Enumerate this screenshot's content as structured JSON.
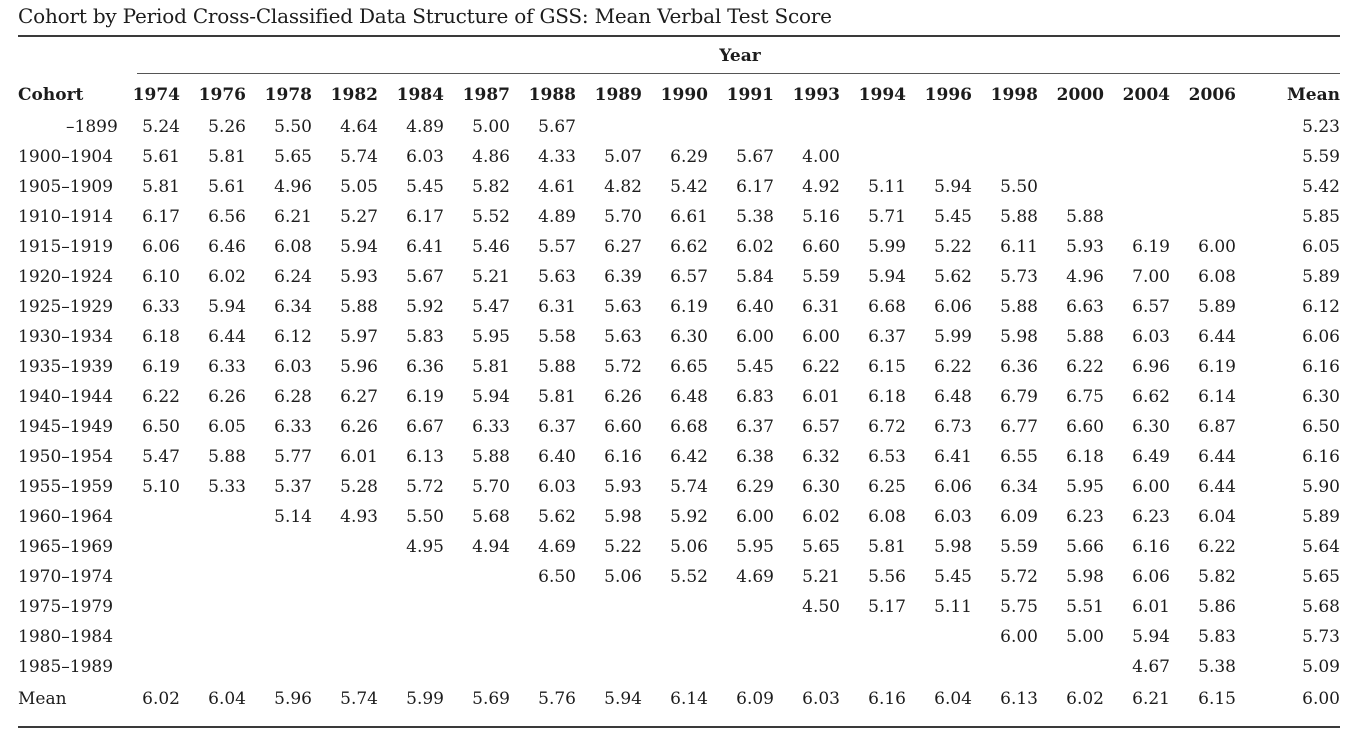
{
  "title": "Cohort by Period Cross-Classified Data Structure of GSS: Mean Verbal Test Score",
  "table": {
    "year_label": "Year",
    "cohort_header": "Cohort",
    "years": [
      "1974",
      "1976",
      "1978",
      "1982",
      "1984",
      "1987",
      "1988",
      "1989",
      "1990",
      "1991",
      "1993",
      "1994",
      "1996",
      "1998",
      "2000",
      "2004",
      "2006"
    ],
    "mean_header": "Mean",
    "rows": [
      {
        "cohort": "–1899",
        "values": [
          "5.24",
          "5.26",
          "5.50",
          "4.64",
          "4.89",
          "5.00",
          "5.67",
          "",
          "",
          "",
          "",
          "",
          "",
          "",
          "",
          "",
          ""
        ],
        "mean": "5.23"
      },
      {
        "cohort": "1900–1904",
        "values": [
          "5.61",
          "5.81",
          "5.65",
          "5.74",
          "6.03",
          "4.86",
          "4.33",
          "5.07",
          "6.29",
          "5.67",
          "4.00",
          "",
          "",
          "",
          "",
          "",
          ""
        ],
        "mean": "5.59"
      },
      {
        "cohort": "1905–1909",
        "values": [
          "5.81",
          "5.61",
          "4.96",
          "5.05",
          "5.45",
          "5.82",
          "4.61",
          "4.82",
          "5.42",
          "6.17",
          "4.92",
          "5.11",
          "5.94",
          "5.50",
          "",
          "",
          ""
        ],
        "mean": "5.42"
      },
      {
        "cohort": "1910–1914",
        "values": [
          "6.17",
          "6.56",
          "6.21",
          "5.27",
          "6.17",
          "5.52",
          "4.89",
          "5.70",
          "6.61",
          "5.38",
          "5.16",
          "5.71",
          "5.45",
          "5.88",
          "5.88",
          "",
          ""
        ],
        "mean": "5.85"
      },
      {
        "cohort": "1915–1919",
        "values": [
          "6.06",
          "6.46",
          "6.08",
          "5.94",
          "6.41",
          "5.46",
          "5.57",
          "6.27",
          "6.62",
          "6.02",
          "6.60",
          "5.99",
          "5.22",
          "6.11",
          "5.93",
          "6.19",
          "6.00"
        ],
        "mean": "6.05"
      },
      {
        "cohort": "1920–1924",
        "values": [
          "6.10",
          "6.02",
          "6.24",
          "5.93",
          "5.67",
          "5.21",
          "5.63",
          "6.39",
          "6.57",
          "5.84",
          "5.59",
          "5.94",
          "5.62",
          "5.73",
          "4.96",
          "7.00",
          "6.08"
        ],
        "mean": "5.89"
      },
      {
        "cohort": "1925–1929",
        "values": [
          "6.33",
          "5.94",
          "6.34",
          "5.88",
          "5.92",
          "5.47",
          "6.31",
          "5.63",
          "6.19",
          "6.40",
          "6.31",
          "6.68",
          "6.06",
          "5.88",
          "6.63",
          "6.57",
          "5.89"
        ],
        "mean": "6.12"
      },
      {
        "cohort": "1930–1934",
        "values": [
          "6.18",
          "6.44",
          "6.12",
          "5.97",
          "5.83",
          "5.95",
          "5.58",
          "5.63",
          "6.30",
          "6.00",
          "6.00",
          "6.37",
          "5.99",
          "5.98",
          "5.88",
          "6.03",
          "6.44"
        ],
        "mean": "6.06"
      },
      {
        "cohort": "1935–1939",
        "values": [
          "6.19",
          "6.33",
          "6.03",
          "5.96",
          "6.36",
          "5.81",
          "5.88",
          "5.72",
          "6.65",
          "5.45",
          "6.22",
          "6.15",
          "6.22",
          "6.36",
          "6.22",
          "6.96",
          "6.19"
        ],
        "mean": "6.16"
      },
      {
        "cohort": "1940–1944",
        "values": [
          "6.22",
          "6.26",
          "6.28",
          "6.27",
          "6.19",
          "5.94",
          "5.81",
          "6.26",
          "6.48",
          "6.83",
          "6.01",
          "6.18",
          "6.48",
          "6.79",
          "6.75",
          "6.62",
          "6.14"
        ],
        "mean": "6.30"
      },
      {
        "cohort": "1945–1949",
        "values": [
          "6.50",
          "6.05",
          "6.33",
          "6.26",
          "6.67",
          "6.33",
          "6.37",
          "6.60",
          "6.68",
          "6.37",
          "6.57",
          "6.72",
          "6.73",
          "6.77",
          "6.60",
          "6.30",
          "6.87"
        ],
        "mean": "6.50"
      },
      {
        "cohort": "1950–1954",
        "values": [
          "5.47",
          "5.88",
          "5.77",
          "6.01",
          "6.13",
          "5.88",
          "6.40",
          "6.16",
          "6.42",
          "6.38",
          "6.32",
          "6.53",
          "6.41",
          "6.55",
          "6.18",
          "6.49",
          "6.44"
        ],
        "mean": "6.16"
      },
      {
        "cohort": "1955–1959",
        "values": [
          "5.10",
          "5.33",
          "5.37",
          "5.28",
          "5.72",
          "5.70",
          "6.03",
          "5.93",
          "5.74",
          "6.29",
          "6.30",
          "6.25",
          "6.06",
          "6.34",
          "5.95",
          "6.00",
          "6.44"
        ],
        "mean": "5.90"
      },
      {
        "cohort": "1960–1964",
        "values": [
          "",
          "",
          "5.14",
          "4.93",
          "5.50",
          "5.68",
          "5.62",
          "5.98",
          "5.92",
          "6.00",
          "6.02",
          "6.08",
          "6.03",
          "6.09",
          "6.23",
          "6.23",
          "6.04"
        ],
        "mean": "5.89"
      },
      {
        "cohort": "1965–1969",
        "values": [
          "",
          "",
          "",
          "",
          "4.95",
          "4.94",
          "4.69",
          "5.22",
          "5.06",
          "5.95",
          "5.65",
          "5.81",
          "5.98",
          "5.59",
          "5.66",
          "6.16",
          "6.22"
        ],
        "mean": "5.64"
      },
      {
        "cohort": "1970–1974",
        "values": [
          "",
          "",
          "",
          "",
          "",
          "",
          "6.50",
          "5.06",
          "5.52",
          "4.69",
          "5.21",
          "5.56",
          "5.45",
          "5.72",
          "5.98",
          "6.06",
          "5.82"
        ],
        "mean": "5.65"
      },
      {
        "cohort": "1975–1979",
        "values": [
          "",
          "",
          "",
          "",
          "",
          "",
          "",
          "",
          "",
          "",
          "4.50",
          "5.17",
          "5.11",
          "5.75",
          "5.51",
          "6.01",
          "5.86"
        ],
        "mean": "5.68"
      },
      {
        "cohort": "1980–1984",
        "values": [
          "",
          "",
          "",
          "",
          "",
          "",
          "",
          "",
          "",
          "",
          "",
          "",
          "",
          "6.00",
          "5.00",
          "5.94",
          "5.83"
        ],
        "mean": "5.73"
      },
      {
        "cohort": "1985–1989",
        "values": [
          "",
          "",
          "",
          "",
          "",
          "",
          "",
          "",
          "",
          "",
          "",
          "",
          "",
          "",
          "",
          "4.67",
          "5.38"
        ],
        "mean": "5.09"
      }
    ],
    "mean_row": {
      "label": "Mean",
      "values": [
        "6.02",
        "6.04",
        "5.96",
        "5.74",
        "5.99",
        "5.69",
        "5.76",
        "5.94",
        "6.14",
        "6.09",
        "6.03",
        "6.16",
        "6.04",
        "6.13",
        "6.02",
        "6.21",
        "6.15"
      ],
      "mean": "6.00"
    }
  }
}
